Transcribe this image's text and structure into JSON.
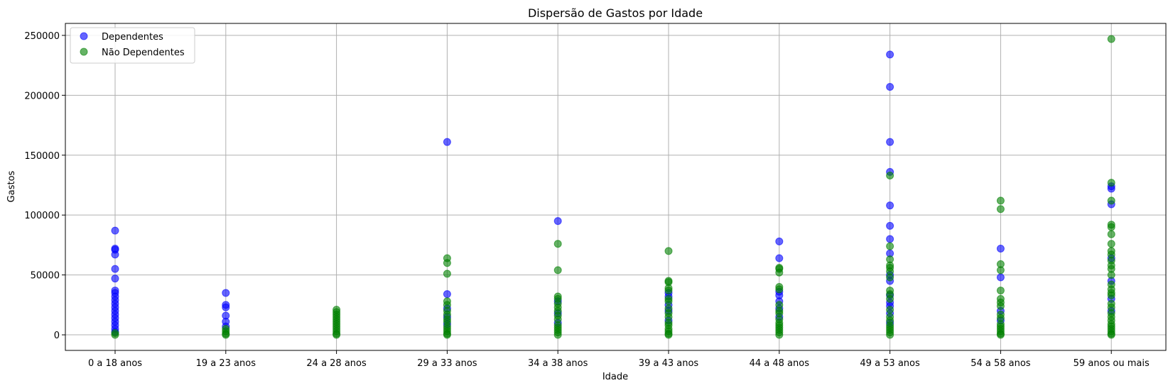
{
  "chart_data": {
    "type": "scatter",
    "title": "Dispersão de Gastos por Idade",
    "xlabel": "Idade",
    "ylabel": "Gastos",
    "ylim": [
      -13000,
      260000
    ],
    "yticks": [
      0,
      50000,
      100000,
      150000,
      200000,
      250000
    ],
    "grid": true,
    "legend_position": "top-left",
    "categories": [
      "0 a 18 anos",
      "19 a 23 anos",
      "24 a 28 anos",
      "29 a 33 anos",
      "34 a 38 anos",
      "39 a 43 anos",
      "44 a 48 anos",
      "49 a 53 anos",
      "54 a 58 anos",
      "59 anos ou mais"
    ],
    "series": [
      {
        "name": "Dependentes",
        "color": "#0000ff",
        "points": [
          {
            "x": "0 a 18 anos",
            "y": 87000
          },
          {
            "x": "0 a 18 anos",
            "y": 72000
          },
          {
            "x": "0 a 18 anos",
            "y": 71000
          },
          {
            "x": "0 a 18 anos",
            "y": 67000
          },
          {
            "x": "0 a 18 anos",
            "y": 55000
          },
          {
            "x": "0 a 18 anos",
            "y": 47000
          },
          {
            "x": "0 a 18 anos",
            "y": 37000
          },
          {
            "x": "0 a 18 anos",
            "y": 35000
          },
          {
            "x": "0 a 18 anos",
            "y": 32000
          },
          {
            "x": "0 a 18 anos",
            "y": 29000
          },
          {
            "x": "0 a 18 anos",
            "y": 26000
          },
          {
            "x": "0 a 18 anos",
            "y": 23000
          },
          {
            "x": "0 a 18 anos",
            "y": 20000
          },
          {
            "x": "0 a 18 anos",
            "y": 17000
          },
          {
            "x": "0 a 18 anos",
            "y": 14000
          },
          {
            "x": "0 a 18 anos",
            "y": 11000
          },
          {
            "x": "0 a 18 anos",
            "y": 8000
          },
          {
            "x": "0 a 18 anos",
            "y": 5000
          },
          {
            "x": "0 a 18 anos",
            "y": 2500
          },
          {
            "x": "19 a 23 anos",
            "y": 35000
          },
          {
            "x": "19 a 23 anos",
            "y": 25000
          },
          {
            "x": "19 a 23 anos",
            "y": 23000
          },
          {
            "x": "19 a 23 anos",
            "y": 16000
          },
          {
            "x": "19 a 23 anos",
            "y": 11000
          },
          {
            "x": "19 a 23 anos",
            "y": 7000
          },
          {
            "x": "29 a 33 anos",
            "y": 161000
          },
          {
            "x": "29 a 33 anos",
            "y": 34000
          },
          {
            "x": "29 a 33 anos",
            "y": 22000
          },
          {
            "x": "29 a 33 anos",
            "y": 15000
          },
          {
            "x": "29 a 33 anos",
            "y": 9000
          },
          {
            "x": "34 a 38 anos",
            "y": 95000
          },
          {
            "x": "34 a 38 anos",
            "y": 28000
          },
          {
            "x": "34 a 38 anos",
            "y": 18000
          },
          {
            "x": "34 a 38 anos",
            "y": 10000
          },
          {
            "x": "39 a 43 anos",
            "y": 35000
          },
          {
            "x": "39 a 43 anos",
            "y": 32000
          },
          {
            "x": "39 a 43 anos",
            "y": 25000
          },
          {
            "x": "39 a 43 anos",
            "y": 20000
          },
          {
            "x": "39 a 43 anos",
            "y": 12000
          },
          {
            "x": "44 a 48 anos",
            "y": 78000
          },
          {
            "x": "44 a 48 anos",
            "y": 64000
          },
          {
            "x": "44 a 48 anos",
            "y": 36000
          },
          {
            "x": "44 a 48 anos",
            "y": 33000
          },
          {
            "x": "44 a 48 anos",
            "y": 28000
          },
          {
            "x": "44 a 48 anos",
            "y": 22000
          },
          {
            "x": "44 a 48 anos",
            "y": 15000
          },
          {
            "x": "49 a 53 anos",
            "y": 234000
          },
          {
            "x": "49 a 53 anos",
            "y": 207000
          },
          {
            "x": "49 a 53 anos",
            "y": 161000
          },
          {
            "x": "49 a 53 anos",
            "y": 136000
          },
          {
            "x": "49 a 53 anos",
            "y": 108000
          },
          {
            "x": "49 a 53 anos",
            "y": 91000
          },
          {
            "x": "49 a 53 anos",
            "y": 80000
          },
          {
            "x": "49 a 53 anos",
            "y": 68000
          },
          {
            "x": "49 a 53 anos",
            "y": 50000
          },
          {
            "x": "49 a 53 anos",
            "y": 45000
          },
          {
            "x": "49 a 53 anos",
            "y": 33000
          },
          {
            "x": "49 a 53 anos",
            "y": 27000
          },
          {
            "x": "49 a 53 anos",
            "y": 24000
          },
          {
            "x": "49 a 53 anos",
            "y": 18000
          },
          {
            "x": "49 a 53 anos",
            "y": 10000
          },
          {
            "x": "54 a 58 anos",
            "y": 72000
          },
          {
            "x": "54 a 58 anos",
            "y": 48000
          },
          {
            "x": "54 a 58 anos",
            "y": 20000
          },
          {
            "x": "54 a 58 anos",
            "y": 12000
          },
          {
            "x": "59 anos ou mais",
            "y": 124000
          },
          {
            "x": "59 anos ou mais",
            "y": 122000
          },
          {
            "x": "59 anos ou mais",
            "y": 109000
          },
          {
            "x": "59 anos ou mais",
            "y": 64000
          },
          {
            "x": "59 anos ou mais",
            "y": 45000
          },
          {
            "x": "59 anos ou mais",
            "y": 30000
          },
          {
            "x": "59 anos ou mais",
            "y": 20000
          }
        ]
      },
      {
        "name": "Não Dependentes",
        "color": "#008000",
        "points": [
          {
            "x": "0 a 18 anos",
            "y": 1500
          },
          {
            "x": "0 a 18 anos",
            "y": 0
          },
          {
            "x": "19 a 23 anos",
            "y": 5000
          },
          {
            "x": "19 a 23 anos",
            "y": 3000
          },
          {
            "x": "19 a 23 anos",
            "y": 1000
          },
          {
            "x": "19 a 23 anos",
            "y": 0
          },
          {
            "x": "24 a 28 anos",
            "y": 21000
          },
          {
            "x": "24 a 28 anos",
            "y": 19000
          },
          {
            "x": "24 a 28 anos",
            "y": 17000
          },
          {
            "x": "24 a 28 anos",
            "y": 15000
          },
          {
            "x": "24 a 28 anos",
            "y": 13000
          },
          {
            "x": "24 a 28 anos",
            "y": 11000
          },
          {
            "x": "24 a 28 anos",
            "y": 9000
          },
          {
            "x": "24 a 28 anos",
            "y": 7000
          },
          {
            "x": "24 a 28 anos",
            "y": 5000
          },
          {
            "x": "24 a 28 anos",
            "y": 3000
          },
          {
            "x": "24 a 28 anos",
            "y": 1000
          },
          {
            "x": "24 a 28 anos",
            "y": 0
          },
          {
            "x": "29 a 33 anos",
            "y": 64000
          },
          {
            "x": "29 a 33 anos",
            "y": 60000
          },
          {
            "x": "29 a 33 anos",
            "y": 51000
          },
          {
            "x": "29 a 33 anos",
            "y": 28000
          },
          {
            "x": "29 a 33 anos",
            "y": 25000
          },
          {
            "x": "29 a 33 anos",
            "y": 20000
          },
          {
            "x": "29 a 33 anos",
            "y": 17000
          },
          {
            "x": "29 a 33 anos",
            "y": 13000
          },
          {
            "x": "29 a 33 anos",
            "y": 11000
          },
          {
            "x": "29 a 33 anos",
            "y": 7000
          },
          {
            "x": "29 a 33 anos",
            "y": 5000
          },
          {
            "x": "29 a 33 anos",
            "y": 3000
          },
          {
            "x": "29 a 33 anos",
            "y": 1000
          },
          {
            "x": "29 a 33 anos",
            "y": 0
          },
          {
            "x": "34 a 38 anos",
            "y": 76000
          },
          {
            "x": "34 a 38 anos",
            "y": 54000
          },
          {
            "x": "34 a 38 anos",
            "y": 32000
          },
          {
            "x": "34 a 38 anos",
            "y": 30000
          },
          {
            "x": "34 a 38 anos",
            "y": 26000
          },
          {
            "x": "34 a 38 anos",
            "y": 23000
          },
          {
            "x": "34 a 38 anos",
            "y": 20000
          },
          {
            "x": "34 a 38 anos",
            "y": 16000
          },
          {
            "x": "34 a 38 anos",
            "y": 13000
          },
          {
            "x": "34 a 38 anos",
            "y": 8000
          },
          {
            "x": "34 a 38 anos",
            "y": 6000
          },
          {
            "x": "34 a 38 anos",
            "y": 4000
          },
          {
            "x": "34 a 38 anos",
            "y": 2000
          },
          {
            "x": "34 a 38 anos",
            "y": 0
          },
          {
            "x": "39 a 43 anos",
            "y": 70000
          },
          {
            "x": "39 a 43 anos",
            "y": 45000
          },
          {
            "x": "39 a 43 anos",
            "y": 44000
          },
          {
            "x": "39 a 43 anos",
            "y": 39000
          },
          {
            "x": "39 a 43 anos",
            "y": 37000
          },
          {
            "x": "39 a 43 anos",
            "y": 30000
          },
          {
            "x": "39 a 43 anos",
            "y": 28000
          },
          {
            "x": "39 a 43 anos",
            "y": 22000
          },
          {
            "x": "39 a 43 anos",
            "y": 18000
          },
          {
            "x": "39 a 43 anos",
            "y": 15000
          },
          {
            "x": "39 a 43 anos",
            "y": 10000
          },
          {
            "x": "39 a 43 anos",
            "y": 8000
          },
          {
            "x": "39 a 43 anos",
            "y": 5000
          },
          {
            "x": "39 a 43 anos",
            "y": 3000
          },
          {
            "x": "39 a 43 anos",
            "y": 1000
          },
          {
            "x": "39 a 43 anos",
            "y": 0
          },
          {
            "x": "44 a 48 anos",
            "y": 56000
          },
          {
            "x": "44 a 48 anos",
            "y": 55000
          },
          {
            "x": "44 a 48 anos",
            "y": 52000
          },
          {
            "x": "44 a 48 anos",
            "y": 40000
          },
          {
            "x": "44 a 48 anos",
            "y": 38000
          },
          {
            "x": "44 a 48 anos",
            "y": 25000
          },
          {
            "x": "44 a 48 anos",
            "y": 20000
          },
          {
            "x": "44 a 48 anos",
            "y": 18000
          },
          {
            "x": "44 a 48 anos",
            "y": 13000
          },
          {
            "x": "44 a 48 anos",
            "y": 10000
          },
          {
            "x": "44 a 48 anos",
            "y": 8000
          },
          {
            "x": "44 a 48 anos",
            "y": 6000
          },
          {
            "x": "44 a 48 anos",
            "y": 4000
          },
          {
            "x": "44 a 48 anos",
            "y": 2000
          },
          {
            "x": "44 a 48 anos",
            "y": 0
          },
          {
            "x": "49 a 53 anos",
            "y": 133000
          },
          {
            "x": "49 a 53 anos",
            "y": 74000
          },
          {
            "x": "49 a 53 anos",
            "y": 63000
          },
          {
            "x": "49 a 53 anos",
            "y": 58000
          },
          {
            "x": "49 a 53 anos",
            "y": 56000
          },
          {
            "x": "49 a 53 anos",
            "y": 53000
          },
          {
            "x": "49 a 53 anos",
            "y": 48000
          },
          {
            "x": "49 a 53 anos",
            "y": 37000
          },
          {
            "x": "49 a 53 anos",
            "y": 34000
          },
          {
            "x": "49 a 53 anos",
            "y": 30000
          },
          {
            "x": "49 a 53 anos",
            "y": 21000
          },
          {
            "x": "49 a 53 anos",
            "y": 15000
          },
          {
            "x": "49 a 53 anos",
            "y": 12000
          },
          {
            "x": "49 a 53 anos",
            "y": 8000
          },
          {
            "x": "49 a 53 anos",
            "y": 6000
          },
          {
            "x": "49 a 53 anos",
            "y": 4000
          },
          {
            "x": "49 a 53 anos",
            "y": 2000
          },
          {
            "x": "49 a 53 anos",
            "y": 0
          },
          {
            "x": "54 a 58 anos",
            "y": 112000
          },
          {
            "x": "54 a 58 anos",
            "y": 105000
          },
          {
            "x": "54 a 58 anos",
            "y": 59000
          },
          {
            "x": "54 a 58 anos",
            "y": 54000
          },
          {
            "x": "54 a 58 anos",
            "y": 37000
          },
          {
            "x": "54 a 58 anos",
            "y": 30000
          },
          {
            "x": "54 a 58 anos",
            "y": 27000
          },
          {
            "x": "54 a 58 anos",
            "y": 24000
          },
          {
            "x": "54 a 58 anos",
            "y": 17000
          },
          {
            "x": "54 a 58 anos",
            "y": 14000
          },
          {
            "x": "54 a 58 anos",
            "y": 9000
          },
          {
            "x": "54 a 58 anos",
            "y": 7000
          },
          {
            "x": "54 a 58 anos",
            "y": 5000
          },
          {
            "x": "54 a 58 anos",
            "y": 3000
          },
          {
            "x": "54 a 58 anos",
            "y": 1000
          },
          {
            "x": "54 a 58 anos",
            "y": 0
          },
          {
            "x": "59 anos ou mais",
            "y": 247000
          },
          {
            "x": "59 anos ou mais",
            "y": 127000
          },
          {
            "x": "59 anos ou mais",
            "y": 112000
          },
          {
            "x": "59 anos ou mais",
            "y": 92000
          },
          {
            "x": "59 anos ou mais",
            "y": 90000
          },
          {
            "x": "59 anos ou mais",
            "y": 84000
          },
          {
            "x": "59 anos ou mais",
            "y": 76000
          },
          {
            "x": "59 anos ou mais",
            "y": 70000
          },
          {
            "x": "59 anos ou mais",
            "y": 67000
          },
          {
            "x": "59 anos ou mais",
            "y": 62000
          },
          {
            "x": "59 anos ou mais",
            "y": 58000
          },
          {
            "x": "59 anos ou mais",
            "y": 55000
          },
          {
            "x": "59 anos ou mais",
            "y": 50000
          },
          {
            "x": "59 anos ou mais",
            "y": 42000
          },
          {
            "x": "59 anos ou mais",
            "y": 38000
          },
          {
            "x": "59 anos ou mais",
            "y": 35000
          },
          {
            "x": "59 anos ou mais",
            "y": 33000
          },
          {
            "x": "59 anos ou mais",
            "y": 26000
          },
          {
            "x": "59 anos ou mais",
            "y": 23000
          },
          {
            "x": "59 anos ou mais",
            "y": 18000
          },
          {
            "x": "59 anos ou mais",
            "y": 15000
          },
          {
            "x": "59 anos ou mais",
            "y": 12000
          },
          {
            "x": "59 anos ou mais",
            "y": 9000
          },
          {
            "x": "59 anos ou mais",
            "y": 7000
          },
          {
            "x": "59 anos ou mais",
            "y": 5000
          },
          {
            "x": "59 anos ou mais",
            "y": 3000
          },
          {
            "x": "59 anos ou mais",
            "y": 1000
          },
          {
            "x": "59 anos ou mais",
            "y": 0
          }
        ]
      }
    ]
  }
}
